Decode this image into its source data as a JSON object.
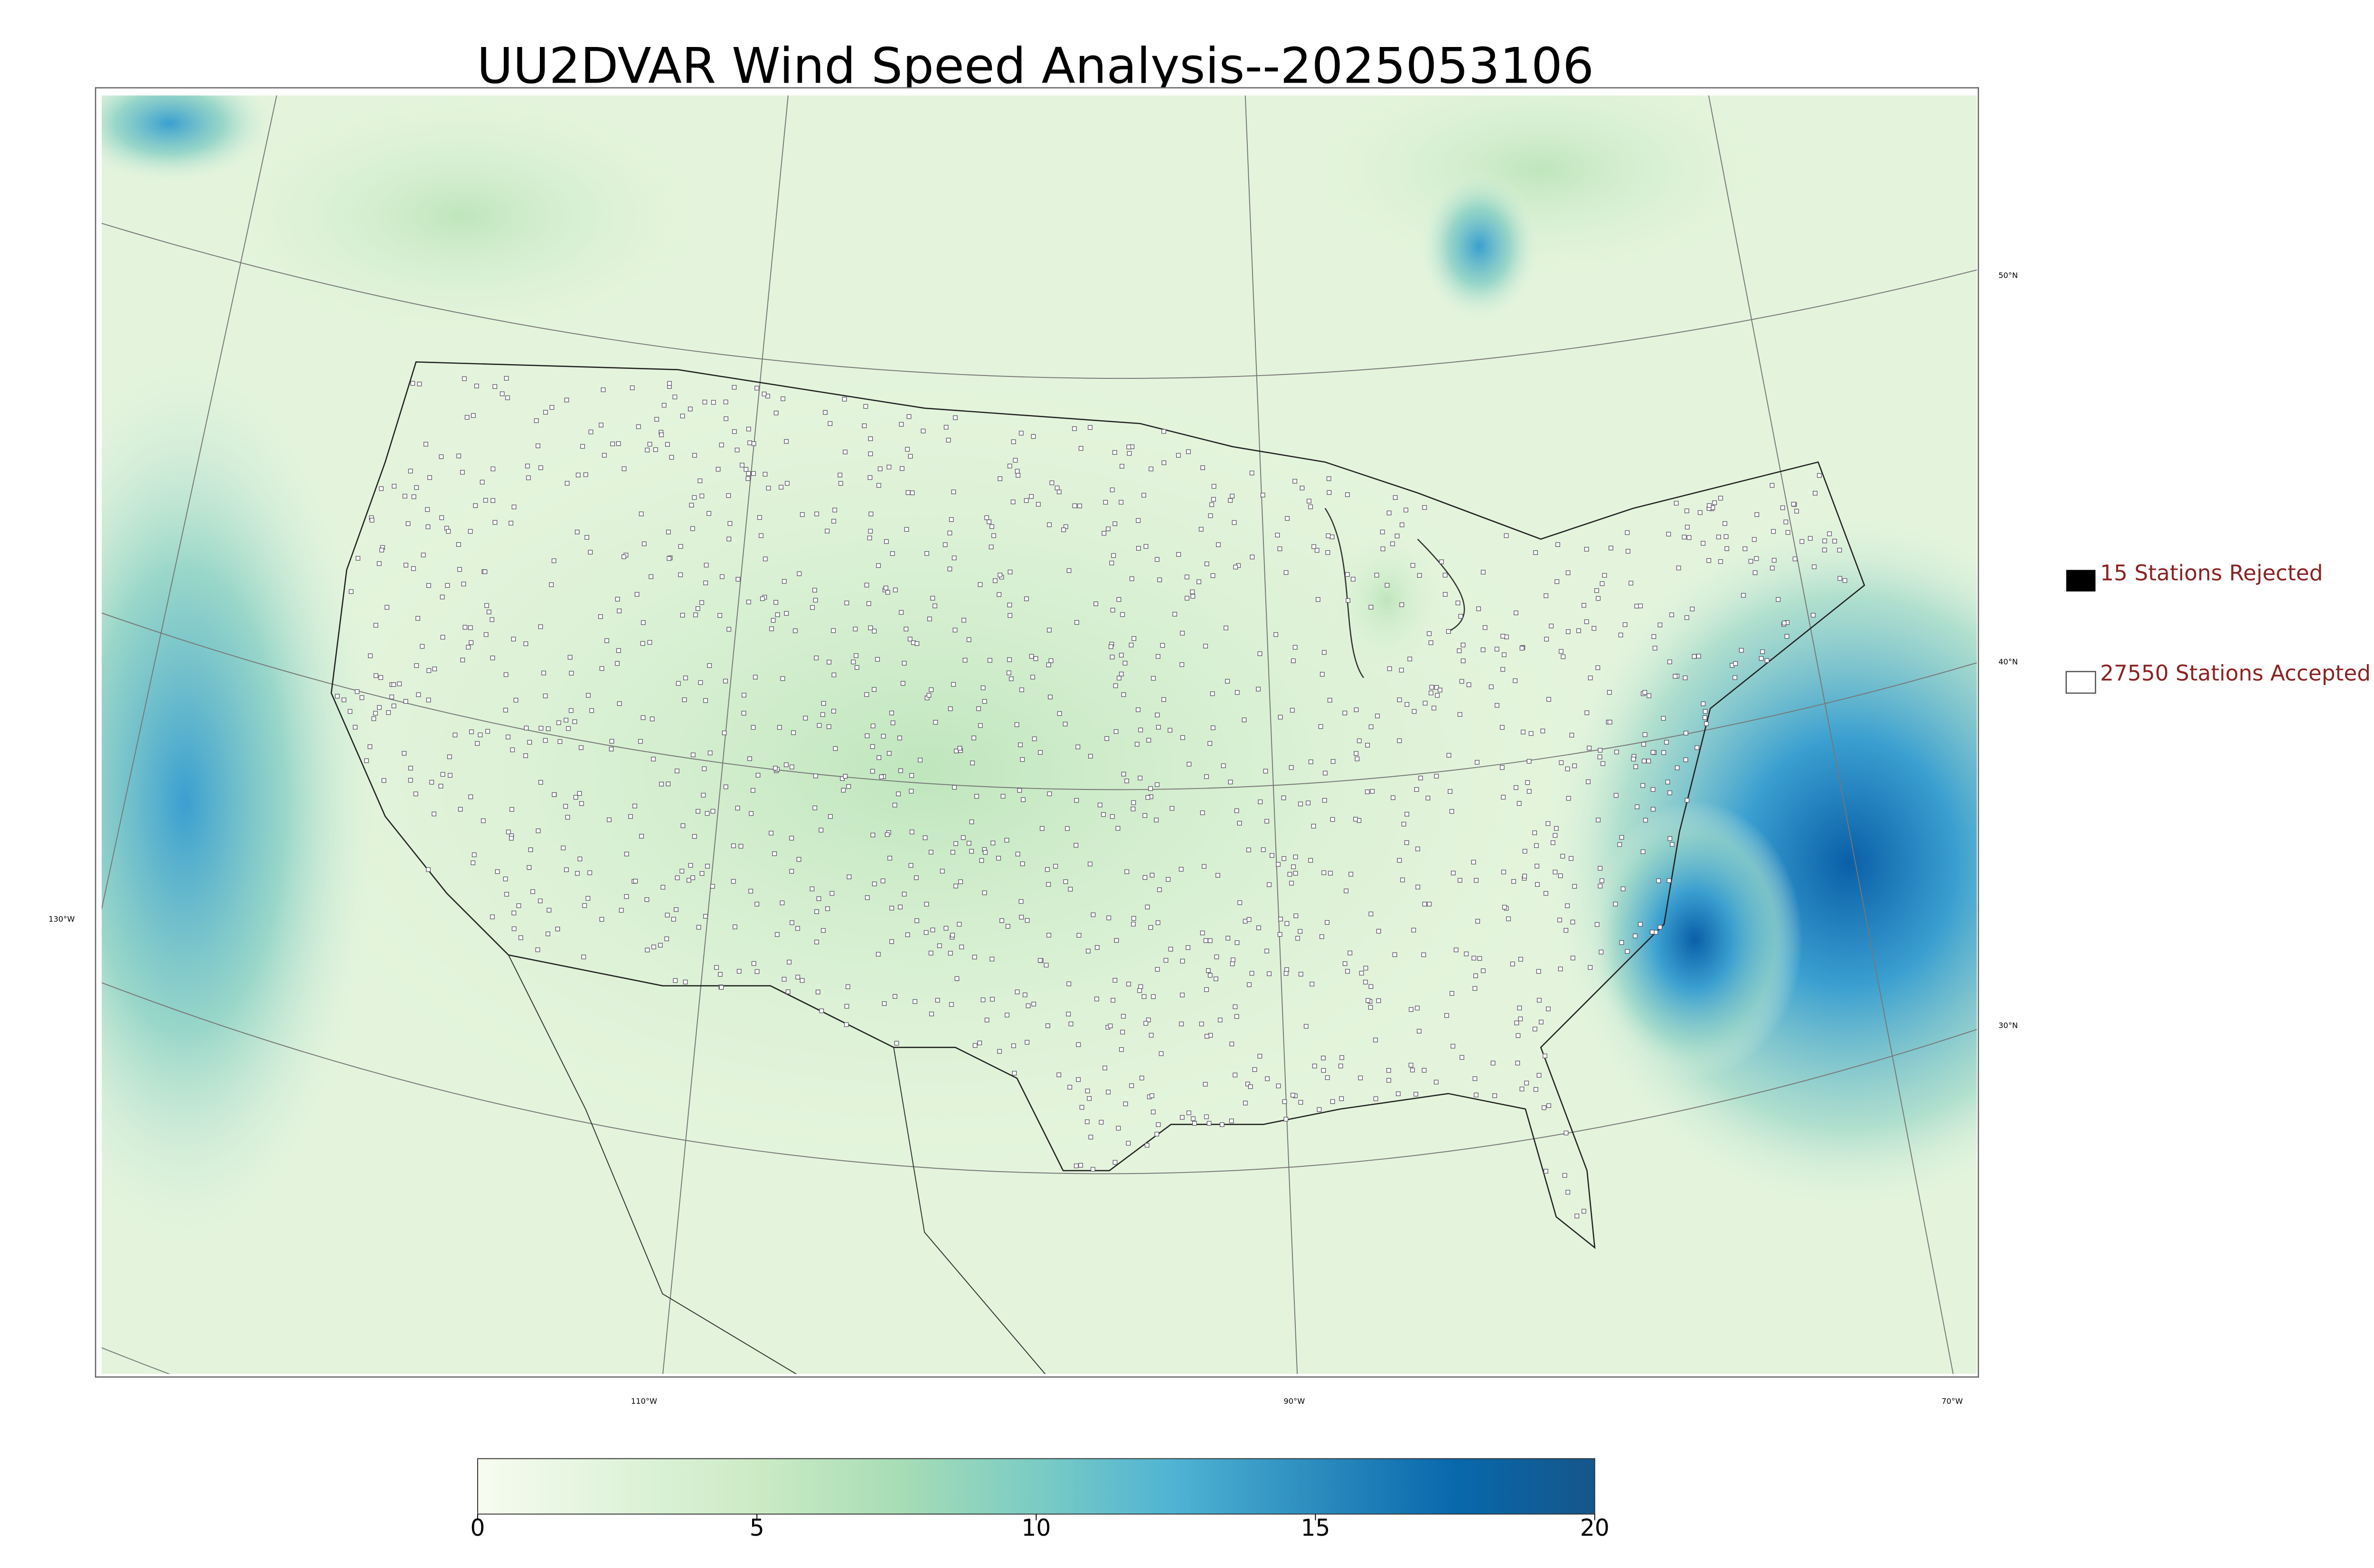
{
  "title": "UU2DVAR Wind Speed Analysis--2025053106",
  "legend": {
    "rejected": "15 Stations Rejected",
    "accepted": "27550 Stations Accepted",
    "text_color": "#8b2323"
  },
  "graticule": {
    "lat": [
      "50°N",
      "40°N",
      "30°N"
    ],
    "lon": [
      "130°W",
      "110°W",
      "90°W",
      "70°W"
    ]
  },
  "colorbar": {
    "lim": [
      0,
      20
    ],
    "ticks": [
      0,
      5,
      10,
      15,
      20
    ],
    "colors": [
      "#f7fcf0",
      "#e0f3db",
      "#ccebc5",
      "#a8ddb5",
      "#7bccc4",
      "#4eb3d3",
      "#2b8cbe",
      "#0868ac",
      "#15568a"
    ]
  }
}
